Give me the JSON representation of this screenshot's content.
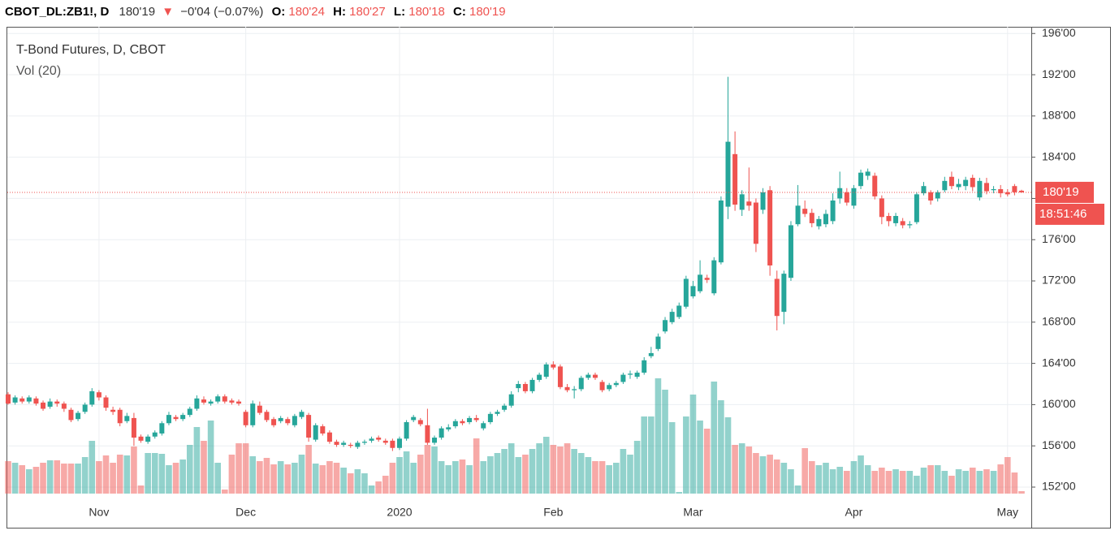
{
  "chart_data": {
    "type": "candlestick",
    "header": {
      "symbol": "CBOT_DL:ZB1!, D",
      "last": "180'19",
      "change": "−0'04 (−0.07%)",
      "o_label": "O:",
      "o": "180'24",
      "h_label": "H:",
      "h": "180'27",
      "l_label": "L:",
      "l": "180'18",
      "c_label": "C:",
      "c": "180'19"
    },
    "title": "T-Bond Futures, D, CBOT",
    "volume_title": "Vol (20)",
    "price_label": "180'19",
    "countdown": "18:51:46",
    "up_color": "#26a69a",
    "down_color": "#ef5350",
    "grid": true,
    "ylim": [
      151.37,
      196.65
    ],
    "yticks": [
      {
        "value": 152,
        "label": "152'00"
      },
      {
        "value": 156,
        "label": "156'00"
      },
      {
        "value": 160,
        "label": "160'00"
      },
      {
        "value": 164,
        "label": "164'00"
      },
      {
        "value": 168,
        "label": "168'00"
      },
      {
        "value": 172,
        "label": "172'00"
      },
      {
        "value": 176,
        "label": "176'00"
      },
      {
        "value": 180,
        "label": "180'00"
      },
      {
        "value": 184,
        "label": "184'00"
      },
      {
        "value": 188,
        "label": "188'00"
      },
      {
        "value": 192,
        "label": "192'00"
      },
      {
        "value": 196,
        "label": "196'00"
      }
    ],
    "categories": [
      null,
      null,
      null,
      null,
      null,
      null,
      null,
      null,
      null,
      null,
      null,
      null,
      null,
      "Nov",
      null,
      null,
      null,
      null,
      null,
      null,
      null,
      null,
      null,
      null,
      null,
      null,
      null,
      null,
      null,
      null,
      null,
      null,
      null,
      null,
      "Dec",
      null,
      null,
      null,
      null,
      null,
      null,
      null,
      null,
      null,
      null,
      null,
      null,
      null,
      null,
      null,
      null,
      null,
      null,
      null,
      null,
      null,
      "2020",
      null,
      null,
      null,
      null,
      null,
      null,
      null,
      null,
      null,
      null,
      null,
      null,
      null,
      null,
      null,
      null,
      null,
      null,
      null,
      null,
      null,
      "Feb",
      null,
      null,
      null,
      null,
      null,
      null,
      null,
      null,
      null,
      null,
      null,
      null,
      null,
      null,
      null,
      null,
      null,
      null,
      null,
      "Mar",
      null,
      null,
      null,
      null,
      null,
      null,
      null,
      null,
      null,
      null,
      null,
      null,
      null,
      null,
      null,
      null,
      null,
      null,
      null,
      null,
      null,
      null,
      "Apr",
      null,
      null,
      null,
      null,
      null,
      null,
      null,
      null,
      null,
      null,
      null,
      null,
      null,
      null,
      null,
      null,
      null,
      null,
      null,
      null,
      null,
      "May",
      null,
      null
    ],
    "ohlc": [
      [
        161,
        161.2,
        160,
        160.1
      ],
      [
        160.2,
        160.9,
        160,
        160.7
      ],
      [
        160.6,
        160.8,
        160.1,
        160.3
      ],
      [
        160.3,
        160.9,
        160.1,
        160.7
      ],
      [
        160.6,
        160.8,
        159.9,
        160.1
      ],
      [
        160.2,
        160.4,
        159.4,
        159.6
      ],
      [
        159.8,
        160.6,
        159.6,
        160.3
      ],
      [
        160.3,
        160.5,
        159.8,
        160.1
      ],
      [
        160.1,
        160.3,
        159.3,
        159.6
      ],
      [
        159.5,
        159.7,
        158.3,
        158.5
      ],
      [
        158.6,
        159.4,
        158.4,
        159.2
      ],
      [
        159.3,
        160.2,
        159.1,
        160.0
      ],
      [
        160.0,
        161.6,
        159.8,
        161.3
      ],
      [
        161.2,
        161.4,
        160.4,
        160.7
      ],
      [
        160.7,
        160.9,
        159.4,
        159.7
      ],
      [
        159.5,
        159.8,
        159.0,
        159.3
      ],
      [
        159.5,
        159.7,
        157.9,
        158.2
      ],
      [
        158.4,
        159.2,
        158.2,
        158.9
      ],
      [
        158.7,
        159.2,
        156.0,
        156.8
      ],
      [
        156.9,
        157.1,
        156.3,
        156.5
      ],
      [
        156.4,
        157.1,
        156.2,
        156.9
      ],
      [
        156.9,
        157.5,
        156.7,
        157.3
      ],
      [
        157.2,
        158.4,
        157.0,
        158.2
      ],
      [
        158.2,
        159.3,
        158.0,
        159.0
      ],
      [
        158.8,
        159.0,
        158.4,
        158.6
      ],
      [
        158.6,
        159.2,
        158.4,
        159.0
      ],
      [
        159.0,
        159.8,
        158.8,
        159.6
      ],
      [
        159.6,
        160.9,
        159.4,
        160.6
      ],
      [
        160.5,
        160.8,
        160.0,
        160.2
      ],
      [
        160.1,
        160.5,
        159.9,
        160.3
      ],
      [
        160.3,
        161.0,
        160.1,
        160.8
      ],
      [
        160.8,
        161.0,
        160.1,
        160.3
      ],
      [
        160.4,
        160.6,
        160.0,
        160.2
      ],
      [
        160.3,
        160.5,
        159.9,
        160.1
      ],
      [
        159.3,
        159.5,
        157.8,
        158.0
      ],
      [
        158.0,
        160.4,
        157.8,
        160.1
      ],
      [
        159.9,
        160.3,
        159.0,
        159.2
      ],
      [
        159.3,
        159.5,
        158.3,
        158.5
      ],
      [
        158.6,
        158.8,
        157.8,
        158.0
      ],
      [
        158.4,
        158.9,
        158.2,
        158.7
      ],
      [
        158.6,
        158.8,
        158.0,
        158.2
      ],
      [
        158.0,
        159.1,
        157.8,
        158.9
      ],
      [
        158.8,
        159.5,
        158.6,
        159.3
      ],
      [
        159.0,
        159.2,
        156.4,
        156.8
      ],
      [
        156.6,
        158.2,
        156.4,
        158.0
      ],
      [
        157.9,
        158.1,
        157.0,
        157.2
      ],
      [
        157.3,
        157.5,
        156.2,
        156.4
      ],
      [
        156.4,
        156.6,
        155.9,
        156.1
      ],
      [
        156.1,
        156.5,
        155.9,
        156.3
      ],
      [
        156.1,
        156.3,
        155.8,
        156.0
      ],
      [
        155.9,
        156.5,
        155.7,
        156.3
      ],
      [
        156.3,
        156.6,
        156.1,
        156.4
      ],
      [
        156.5,
        156.9,
        156.3,
        156.7
      ],
      [
        156.8,
        157.0,
        156.4,
        156.6
      ],
      [
        156.5,
        156.7,
        156.1,
        156.3
      ],
      [
        156.5,
        156.7,
        155.5,
        155.8
      ],
      [
        155.8,
        156.9,
        155.6,
        156.7
      ],
      [
        156.7,
        158.5,
        156.5,
        158.3
      ],
      [
        158.5,
        159.0,
        158.3,
        158.8
      ],
      [
        158.5,
        158.7,
        157.9,
        158.1
      ],
      [
        158.0,
        159.6,
        156.1,
        156.3
      ],
      [
        156.3,
        157.0,
        156.1,
        156.8
      ],
      [
        156.8,
        157.9,
        156.6,
        157.7
      ],
      [
        157.6,
        158.1,
        157.4,
        157.8
      ],
      [
        157.9,
        158.6,
        157.7,
        158.4
      ],
      [
        158.4,
        158.6,
        158.0,
        158.2
      ],
      [
        158.3,
        158.9,
        158.1,
        158.7
      ],
      [
        158.7,
        159.0,
        158.3,
        158.5
      ],
      [
        157.7,
        158.4,
        157.5,
        158.2
      ],
      [
        158.3,
        159.3,
        158.1,
        159.1
      ],
      [
        159.1,
        159.5,
        158.9,
        159.3
      ],
      [
        159.5,
        160.1,
        159.3,
        159.9
      ],
      [
        159.9,
        161.3,
        159.7,
        161.0
      ],
      [
        161.6,
        162.3,
        161.2,
        162.0
      ],
      [
        162.0,
        162.2,
        161.1,
        161.3
      ],
      [
        161.3,
        162.6,
        161.1,
        162.4
      ],
      [
        162.4,
        163.1,
        162.2,
        162.9
      ],
      [
        162.7,
        164.1,
        162.5,
        163.9
      ],
      [
        163.9,
        164.2,
        163.4,
        163.6
      ],
      [
        163.7,
        163.9,
        161.5,
        161.7
      ],
      [
        161.7,
        162.0,
        161.2,
        161.4
      ],
      [
        161.4,
        161.8,
        160.6,
        161.5
      ],
      [
        161.5,
        162.8,
        161.3,
        162.6
      ],
      [
        162.6,
        163.1,
        162.4,
        162.9
      ],
      [
        162.9,
        163.1,
        162.4,
        162.6
      ],
      [
        162.2,
        162.4,
        161.2,
        161.4
      ],
      [
        161.5,
        162.1,
        161.3,
        161.9
      ],
      [
        161.9,
        162.3,
        161.7,
        162.1
      ],
      [
        162.2,
        163.1,
        162.0,
        162.9
      ],
      [
        162.9,
        163.3,
        162.5,
        163.0
      ],
      [
        162.7,
        163.3,
        162.5,
        163.1
      ],
      [
        163.1,
        164.6,
        162.9,
        164.3
      ],
      [
        164.7,
        165.6,
        164.5,
        165.0
      ],
      [
        165.4,
        166.9,
        165.2,
        166.6
      ],
      [
        167.1,
        168.5,
        166.9,
        168.2
      ],
      [
        168.0,
        169.3,
        167.8,
        169.0
      ],
      [
        168.5,
        169.9,
        168.3,
        169.6
      ],
      [
        169.5,
        172.5,
        169.3,
        172.2
      ],
      [
        170.5,
        172.0,
        170.3,
        171.5
      ],
      [
        171.0,
        174.0,
        170.8,
        172.6
      ],
      [
        172.3,
        172.6,
        171.8,
        172.1
      ],
      [
        170.8,
        174.3,
        170.6,
        174.0
      ],
      [
        173.8,
        180.2,
        173.6,
        179.8
      ],
      [
        179.2,
        191.8,
        178.0,
        185.5
      ],
      [
        184.3,
        186.5,
        178.8,
        179.4
      ],
      [
        178.9,
        180.8,
        178.3,
        180.4
      ],
      [
        179.7,
        183.0,
        178.8,
        179.3
      ],
      [
        179.6,
        180.0,
        174.8,
        175.6
      ],
      [
        178.9,
        181.0,
        178.5,
        180.6
      ],
      [
        180.8,
        181.2,
        172.5,
        173.5
      ],
      [
        172.2,
        173.0,
        167.2,
        168.6
      ],
      [
        169.0,
        173.0,
        167.8,
        172.7
      ],
      [
        172.3,
        177.8,
        172.0,
        177.4
      ],
      [
        177.5,
        181.3,
        177.3,
        179.3
      ],
      [
        179.0,
        179.8,
        178.2,
        178.5
      ],
      [
        178.6,
        179.0,
        177.2,
        177.6
      ],
      [
        177.3,
        178.3,
        177.0,
        178.0
      ],
      [
        177.5,
        178.9,
        177.2,
        178.5
      ],
      [
        177.8,
        180.5,
        177.5,
        179.8
      ],
      [
        180.0,
        182.6,
        179.5,
        181.0
      ],
      [
        180.6,
        181.0,
        179.3,
        179.6
      ],
      [
        179.3,
        181.3,
        179.0,
        181.0
      ],
      [
        181.2,
        182.8,
        180.9,
        182.5
      ],
      [
        182.2,
        182.9,
        181.8,
        182.6
      ],
      [
        182.2,
        182.5,
        179.9,
        180.2
      ],
      [
        180.0,
        180.3,
        177.5,
        178.2
      ],
      [
        178.3,
        178.6,
        177.3,
        177.8
      ],
      [
        177.6,
        178.6,
        177.3,
        178.3
      ],
      [
        177.8,
        178.1,
        177.1,
        177.4
      ],
      [
        177.4,
        177.8,
        177.1,
        177.5
      ],
      [
        177.7,
        180.6,
        177.5,
        180.4
      ],
      [
        180.5,
        181.6,
        180.3,
        181.2
      ],
      [
        180.6,
        180.8,
        179.4,
        179.8
      ],
      [
        180.0,
        180.8,
        179.7,
        180.6
      ],
      [
        180.8,
        182.1,
        180.6,
        181.7
      ],
      [
        182.1,
        182.6,
        180.9,
        181.2
      ],
      [
        181.1,
        181.9,
        180.8,
        181.4
      ],
      [
        181.2,
        182.1,
        180.8,
        181.8
      ],
      [
        182.0,
        182.3,
        180.7,
        181.1
      ],
      [
        180.1,
        182.0,
        179.8,
        181.7
      ],
      [
        181.5,
        182.0,
        180.4,
        180.7
      ],
      [
        180.8,
        181.2,
        180.5,
        180.9
      ],
      [
        180.9,
        181.3,
        180.1,
        180.5
      ],
      [
        180.6,
        180.9,
        180.2,
        180.4
      ],
      [
        181.2,
        181.4,
        180.3,
        180.6
      ],
      [
        180.75,
        180.84,
        180.56,
        180.59
      ]
    ],
    "volume": [
      40,
      38,
      35,
      30,
      33,
      38,
      41,
      41,
      37,
      37,
      37,
      45,
      65,
      40,
      47,
      38,
      48,
      47,
      58,
      10,
      50,
      50,
      49,
      35,
      38,
      42,
      60,
      82,
      65,
      90,
      38,
      5,
      48,
      62,
      62,
      46,
      40,
      44,
      36,
      40,
      36,
      38,
      48,
      60,
      37,
      35,
      40,
      38,
      32,
      25,
      30,
      25,
      10,
      15,
      22,
      38,
      45,
      52,
      38,
      48,
      60,
      58,
      40,
      35,
      40,
      42,
      35,
      68,
      40,
      46,
      50,
      55,
      62,
      45,
      48,
      55,
      62,
      70,
      60,
      58,
      62,
      55,
      50,
      45,
      40,
      40,
      35,
      38,
      55,
      48,
      65,
      95,
      95,
      142,
      128,
      88,
      2,
      95,
      122,
      90,
      80,
      138,
      115,
      94,
      60,
      62,
      58,
      50,
      46,
      48,
      42,
      38,
      30,
      10,
      56,
      40,
      35,
      38,
      30,
      33,
      28,
      40,
      47,
      35,
      28,
      32,
      28,
      30,
      28,
      28,
      22,
      32,
      35,
      35,
      28,
      22,
      30,
      28,
      32,
      28,
      30,
      28,
      36,
      45,
      26,
      3
    ]
  }
}
